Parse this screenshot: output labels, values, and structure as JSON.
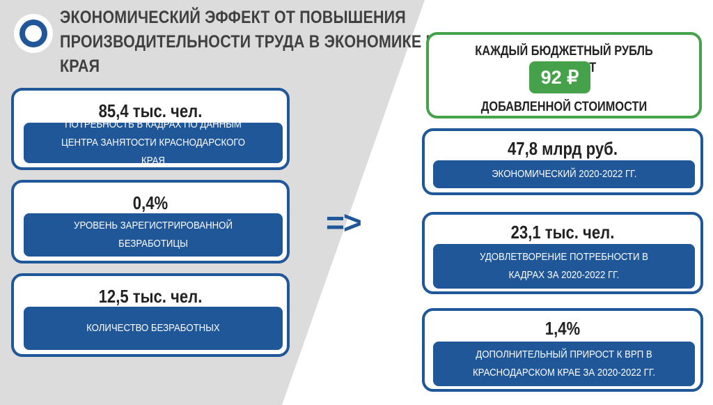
{
  "title": "Экономический эффект от повышения производительности труда в экономике Краснодарского края",
  "arrow": "=>",
  "left_cards": [
    {
      "value": "85,4 тыс. чел.",
      "label": "Потребность в кадрах по данным центра занятости Краснодарского края"
    },
    {
      "value": "0,4%",
      "label": "Уровень зарегистрированной безработицы"
    },
    {
      "value": "12,5 тыс. чел.",
      "label": "Количество безработных"
    }
  ],
  "highlight": {
    "top": "Каждый бюджетный рубль приносит",
    "badge": "92 ₽",
    "bottom": "добавленной стоимости"
  },
  "right_cards": [
    {
      "value": "47,8 млрд руб.",
      "label": "Экономический 2020-2022 гг."
    },
    {
      "value": "23,1 тыс. чел.",
      "label": "Удовлетворение потребности в кадрах за 2020-2022 гг."
    },
    {
      "value": "1,4%",
      "label": "Дополнительный прирост к ВРП в Краснодарском крае за 2020-2022 гг."
    }
  ],
  "colors": {
    "primary_blue": "#1f5799",
    "accent_green": "#46a24a",
    "background_gray": "#dcdcdc"
  }
}
